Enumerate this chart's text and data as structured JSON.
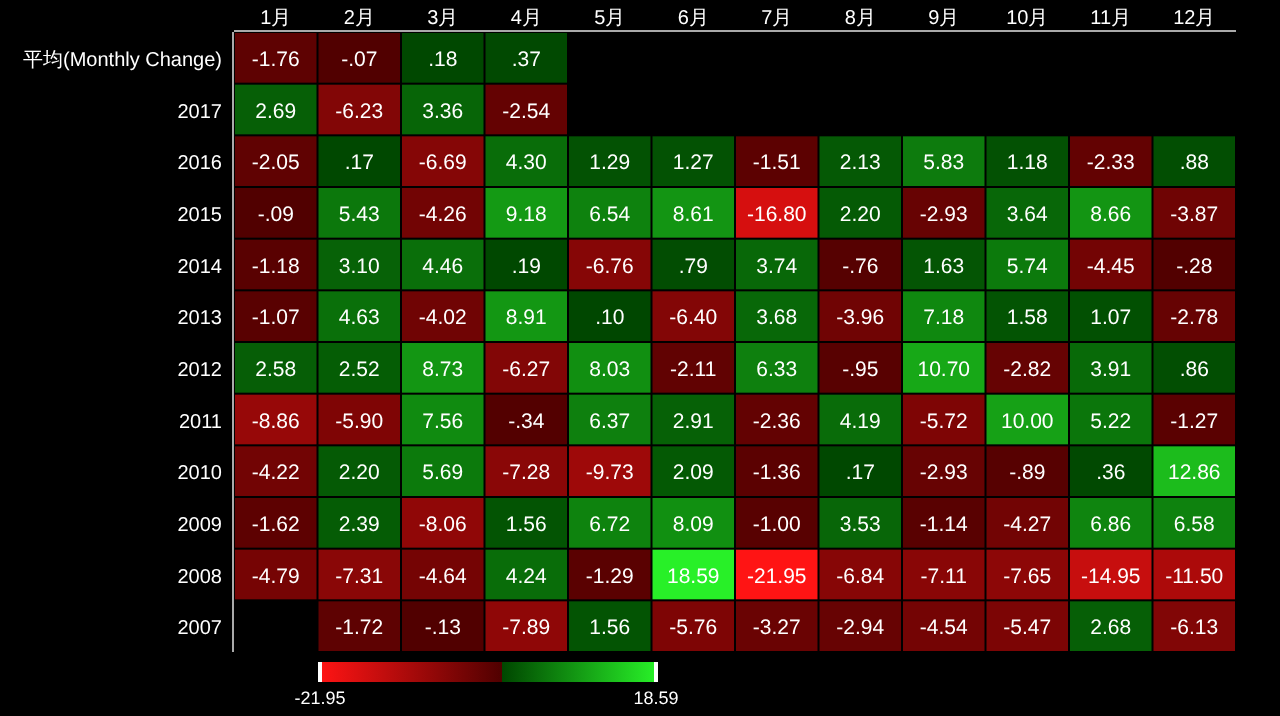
{
  "chart_data": {
    "type": "heatmap",
    "categories": [
      "1月",
      "2月",
      "3月",
      "4月",
      "5月",
      "6月",
      "7月",
      "8月",
      "9月",
      "10月",
      "11月",
      "12月"
    ],
    "y_categories": [
      "平均(Monthly Change)",
      "2017",
      "2016",
      "2015",
      "2014",
      "2013",
      "2012",
      "2011",
      "2010",
      "2009",
      "2008",
      "2007"
    ],
    "cells": [
      [
        -1.76,
        -0.07,
        0.18,
        0.37,
        null,
        null,
        null,
        null,
        null,
        null,
        null,
        null
      ],
      [
        2.69,
        -6.23,
        3.36,
        -2.54,
        null,
        null,
        null,
        null,
        null,
        null,
        null,
        null
      ],
      [
        -2.05,
        0.17,
        -6.69,
        4.3,
        1.29,
        1.27,
        -1.51,
        2.13,
        5.83,
        1.18,
        -2.33,
        0.88
      ],
      [
        -0.09,
        5.43,
        -4.26,
        9.18,
        6.54,
        8.61,
        -16.8,
        2.2,
        -2.93,
        3.64,
        8.66,
        -3.87
      ],
      [
        -1.18,
        3.1,
        4.46,
        0.19,
        -6.76,
        0.79,
        3.74,
        -0.76,
        1.63,
        5.74,
        -4.45,
        -0.28
      ],
      [
        -1.07,
        4.63,
        -4.02,
        8.91,
        0.1,
        -6.4,
        3.68,
        -3.96,
        7.18,
        1.58,
        1.07,
        -2.78
      ],
      [
        2.58,
        2.52,
        8.73,
        -6.27,
        8.03,
        -2.11,
        6.33,
        -0.95,
        10.7,
        -2.82,
        3.91,
        0.86
      ],
      [
        -8.86,
        -5.9,
        7.56,
        -0.34,
        6.37,
        2.91,
        -2.36,
        4.19,
        -5.72,
        10.0,
        5.22,
        -1.27
      ],
      [
        -4.22,
        2.2,
        5.69,
        -7.28,
        -9.73,
        2.09,
        -1.36,
        0.17,
        -2.93,
        -0.89,
        0.36,
        12.86
      ],
      [
        -1.62,
        2.39,
        -8.06,
        1.56,
        6.72,
        8.09,
        -1.0,
        3.53,
        -1.14,
        -4.27,
        6.86,
        6.58
      ],
      [
        -4.79,
        -7.31,
        -4.64,
        4.24,
        -1.29,
        18.59,
        -21.95,
        -6.84,
        -7.11,
        -7.65,
        -14.95,
        -11.5
      ],
      [
        null,
        -1.72,
        -0.13,
        -7.89,
        1.56,
        -5.76,
        -3.27,
        -2.94,
        -4.54,
        -5.47,
        2.68,
        -6.13
      ]
    ],
    "cell_labels": [
      [
        "-1.76",
        "-.07",
        ".18",
        ".37",
        null,
        null,
        null,
        null,
        null,
        null,
        null,
        null
      ],
      [
        "2.69",
        "-6.23",
        "3.36",
        "-2.54",
        null,
        null,
        null,
        null,
        null,
        null,
        null,
        null
      ],
      [
        "-2.05",
        ".17",
        "-6.69",
        "4.30",
        "1.29",
        "1.27",
        "-1.51",
        "2.13",
        "5.83",
        "1.18",
        "-2.33",
        ".88"
      ],
      [
        "-.09",
        "5.43",
        "-4.26",
        "9.18",
        "6.54",
        "8.61",
        "-16.80",
        "2.20",
        "-2.93",
        "3.64",
        "8.66",
        "-3.87"
      ],
      [
        "-1.18",
        "3.10",
        "4.46",
        ".19",
        "-6.76",
        ".79",
        "3.74",
        "-.76",
        "1.63",
        "5.74",
        "-4.45",
        "-.28"
      ],
      [
        "-1.07",
        "4.63",
        "-4.02",
        "8.91",
        ".10",
        "-6.40",
        "3.68",
        "-3.96",
        "7.18",
        "1.58",
        "1.07",
        "-2.78"
      ],
      [
        "2.58",
        "2.52",
        "8.73",
        "-6.27",
        "8.03",
        "-2.11",
        "6.33",
        "-.95",
        "10.70",
        "-2.82",
        "3.91",
        ".86"
      ],
      [
        "-8.86",
        "-5.90",
        "7.56",
        "-.34",
        "6.37",
        "2.91",
        "-2.36",
        "4.19",
        "-5.72",
        "10.00",
        "5.22",
        "-1.27"
      ],
      [
        "-4.22",
        "2.20",
        "5.69",
        "-7.28",
        "-9.73",
        "2.09",
        "-1.36",
        ".17",
        "-2.93",
        "-.89",
        ".36",
        "12.86"
      ],
      [
        "-1.62",
        "2.39",
        "-8.06",
        "1.56",
        "6.72",
        "8.09",
        "-1.00",
        "3.53",
        "-1.14",
        "-4.27",
        "6.86",
        "6.58"
      ],
      [
        "-4.79",
        "-7.31",
        "-4.64",
        "4.24",
        "-1.29",
        "18.59",
        "-21.95",
        "-6.84",
        "-7.11",
        "-7.65",
        "-14.95",
        "-11.50"
      ],
      [
        null,
        "-1.72",
        "-.13",
        "-7.89",
        "1.56",
        "-5.76",
        "-3.27",
        "-2.94",
        "-4.54",
        "-5.47",
        "2.68",
        "-6.13"
      ]
    ],
    "clim": [
      -21.95,
      18.59
    ],
    "cticks": [
      {
        "value": -21.95,
        "label": "-21.95"
      },
      {
        "value": 18.59,
        "label": "18.59"
      }
    ]
  }
}
